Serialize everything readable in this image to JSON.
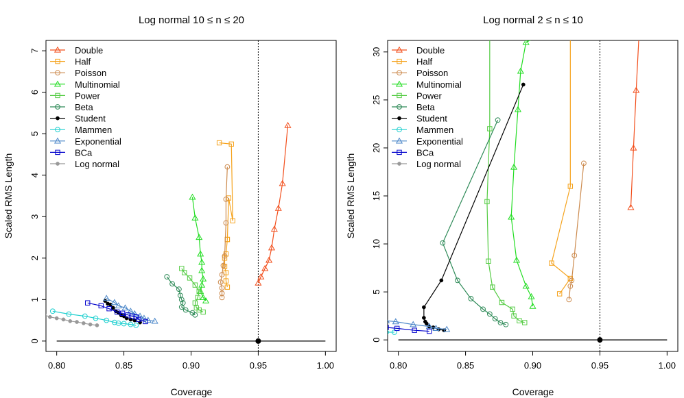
{
  "chart_data": [
    {
      "type": "line",
      "title": "Log normal 10 ≤ n ≤ 20",
      "xlabel": "Coverage",
      "ylabel": "Scaled RMS Length",
      "xlim": [
        0.792,
        1.008
      ],
      "ylim": [
        -0.25,
        7.25
      ],
      "xticks": [
        0.8,
        0.85,
        0.9,
        0.95,
        1.0
      ],
      "xtick_labels": [
        "0.80",
        "0.85",
        "0.90",
        "0.95",
        "1.00"
      ],
      "yticks": [
        0,
        1,
        2,
        3,
        4,
        5,
        6,
        7
      ],
      "ytick_labels": [
        "0",
        "1",
        "2",
        "3",
        "4",
        "5",
        "6",
        "7"
      ],
      "vline": 0.95,
      "baseline": {
        "x": [
          0.8,
          1.0
        ],
        "y": 0,
        "point": [
          0.95,
          0
        ]
      },
      "legend_position": "top-left",
      "series": [
        {
          "name": "Double",
          "color": "#f24d1a",
          "marker": "triangle",
          "x": [
            0.95,
            0.952,
            0.955,
            0.958,
            0.96,
            0.962,
            0.965,
            0.968,
            0.972
          ],
          "y": [
            1.4,
            1.55,
            1.75,
            1.95,
            2.25,
            2.7,
            3.2,
            3.8,
            5.2
          ]
        },
        {
          "name": "Half",
          "color": "#f5a21b",
          "marker": "square",
          "x": [
            0.927,
            0.926,
            0.926,
            0.925,
            0.925,
            0.926,
            0.927,
            0.927,
            0.928,
            0.931,
            0.93,
            0.921
          ],
          "y": [
            1.3,
            1.45,
            1.65,
            1.8,
            2.0,
            2.1,
            2.45,
            2.45,
            3.45,
            2.9,
            4.75,
            4.78
          ]
        },
        {
          "name": "Poisson",
          "color": "#cc8a4d",
          "marker": "circle",
          "x": [
            0.923,
            0.923,
            0.923,
            0.922,
            0.923,
            0.924,
            0.925,
            0.926,
            0.926,
            0.927
          ],
          "y": [
            1.05,
            1.15,
            1.28,
            1.42,
            1.6,
            1.82,
            2.05,
            2.85,
            3.42,
            4.2
          ]
        },
        {
          "name": "Multinomial",
          "color": "#22dd22",
          "marker": "triangle",
          "x": [
            0.911,
            0.909,
            0.907,
            0.908,
            0.909,
            0.908,
            0.908,
            0.907,
            0.906,
            0.903,
            0.901
          ],
          "y": [
            0.97,
            1.05,
            1.2,
            1.35,
            1.5,
            1.7,
            1.9,
            2.1,
            2.5,
            2.97,
            3.47
          ]
        },
        {
          "name": "Power",
          "color": "#55cc44",
          "marker": "square",
          "x": [
            0.909,
            0.906,
            0.904,
            0.903,
            0.905,
            0.906,
            0.903,
            0.899,
            0.895,
            0.893
          ],
          "y": [
            0.7,
            0.75,
            0.8,
            0.92,
            1.05,
            1.2,
            1.35,
            1.52,
            1.65,
            1.75
          ]
        },
        {
          "name": "Beta",
          "color": "#2d8a57",
          "marker": "circle",
          "x": [
            0.903,
            0.901,
            0.896,
            0.893,
            0.894,
            0.893,
            0.892,
            0.891,
            0.886,
            0.882
          ],
          "y": [
            0.63,
            0.68,
            0.75,
            0.82,
            0.92,
            1.0,
            1.1,
            1.25,
            1.38,
            1.55
          ]
        },
        {
          "name": "Student",
          "color": "#000000",
          "marker": "dot",
          "x": [
            0.862,
            0.858,
            0.855,
            0.852,
            0.85,
            0.848,
            0.846,
            0.844,
            0.842,
            0.84,
            0.838,
            0.836
          ],
          "y": [
            0.45,
            0.5,
            0.52,
            0.55,
            0.6,
            0.62,
            0.68,
            0.72,
            0.8,
            0.88,
            0.9,
            0.97
          ]
        },
        {
          "name": "Mammen",
          "color": "#1ccfcf",
          "marker": "circle",
          "x": [
            0.859,
            0.855,
            0.85,
            0.846,
            0.843,
            0.837,
            0.829,
            0.821,
            0.809,
            0.797
          ],
          "y": [
            0.38,
            0.4,
            0.42,
            0.43,
            0.45,
            0.5,
            0.55,
            0.6,
            0.65,
            0.72
          ]
        },
        {
          "name": "Exponential",
          "color": "#4a86c8",
          "marker": "triangle",
          "x": [
            0.873,
            0.868,
            0.865,
            0.862,
            0.858,
            0.855,
            0.851,
            0.846,
            0.843,
            0.837
          ],
          "y": [
            0.48,
            0.5,
            0.55,
            0.6,
            0.66,
            0.72,
            0.8,
            0.85,
            0.93,
            1.03
          ]
        },
        {
          "name": "BCa",
          "color": "#0000cc",
          "marker": "square",
          "x": [
            0.866,
            0.861,
            0.859,
            0.856,
            0.853,
            0.849,
            0.845,
            0.839,
            0.833,
            0.823
          ],
          "y": [
            0.47,
            0.52,
            0.58,
            0.6,
            0.63,
            0.67,
            0.7,
            0.78,
            0.85,
            0.92
          ]
        },
        {
          "name": "Log normal",
          "color": "#999999",
          "marker": "dot",
          "x": [
            0.83,
            0.825,
            0.82,
            0.815,
            0.81,
            0.805,
            0.8,
            0.795,
            0.791
          ],
          "y": [
            0.38,
            0.4,
            0.43,
            0.46,
            0.48,
            0.52,
            0.55,
            0.58,
            0.63
          ]
        }
      ]
    },
    {
      "type": "line",
      "title": "Log normal 2 ≤ n ≤ 10",
      "xlabel": "Coverage",
      "ylabel": "Scaled RMS Length",
      "xlim": [
        0.792,
        1.008
      ],
      "ylim": [
        -1.2,
        31.2
      ],
      "xticks": [
        0.8,
        0.85,
        0.9,
        0.95,
        1.0
      ],
      "xtick_labels": [
        "0.80",
        "0.85",
        "0.90",
        "0.95",
        "1.00"
      ],
      "yticks": [
        0,
        5,
        10,
        15,
        20,
        25,
        30
      ],
      "ytick_labels": [
        "0",
        "5",
        "10",
        "15",
        "20",
        "25",
        "30"
      ],
      "vline": 0.95,
      "baseline": {
        "x": [
          0.8,
          1.0
        ],
        "y": 0,
        "point": [
          0.95,
          0
        ]
      },
      "legend_position": "top-left",
      "series": [
        {
          "name": "Double",
          "color": "#f24d1a",
          "marker": "triangle",
          "x": [
            0.973,
            0.975,
            0.977,
            0.979
          ],
          "y": [
            13.8,
            20.0,
            26.0,
            31.5
          ]
        },
        {
          "name": "Half",
          "color": "#f5a21b",
          "marker": "square",
          "x": [
            0.92,
            0.928,
            0.914,
            0.928,
            0.928
          ],
          "y": [
            4.8,
            6.4,
            8.0,
            16.0,
            31.5
          ]
        },
        {
          "name": "Poisson",
          "color": "#cc8a4d",
          "marker": "circle",
          "x": [
            0.927,
            0.928,
            0.929,
            0.931,
            0.938
          ],
          "y": [
            4.2,
            5.6,
            6.2,
            8.8,
            18.4
          ]
        },
        {
          "name": "Multinomial",
          "color": "#22dd22",
          "marker": "triangle",
          "x": [
            0.9,
            0.899,
            0.895,
            0.888,
            0.884,
            0.886,
            0.889,
            0.891,
            0.895,
            0.902
          ],
          "y": [
            3.5,
            4.5,
            5.6,
            8.3,
            12.8,
            18.0,
            24.0,
            28.0,
            31.0,
            31.5
          ]
        },
        {
          "name": "Power",
          "color": "#55cc44",
          "marker": "square",
          "x": [
            0.894,
            0.89,
            0.886,
            0.885,
            0.877,
            0.87,
            0.867,
            0.866,
            0.868,
            0.868
          ],
          "y": [
            1.8,
            2.0,
            2.5,
            3.2,
            3.9,
            5.5,
            8.2,
            14.4,
            22.0,
            31.5
          ]
        },
        {
          "name": "Beta",
          "color": "#2d8a57",
          "marker": "circle",
          "x": [
            0.88,
            0.876,
            0.872,
            0.868,
            0.863,
            0.854,
            0.844,
            0.833,
            0.874
          ],
          "y": [
            1.6,
            1.8,
            2.2,
            2.7,
            3.2,
            4.3,
            6.2,
            10.1,
            22.9
          ]
        },
        {
          "name": "Student",
          "color": "#000000",
          "marker": "dot",
          "x": [
            0.834,
            0.83,
            0.826,
            0.823,
            0.821,
            0.82,
            0.819,
            0.819,
            0.832,
            0.893
          ],
          "y": [
            1.0,
            1.1,
            1.3,
            1.4,
            1.7,
            1.9,
            2.3,
            3.4,
            6.2,
            26.6
          ]
        },
        {
          "name": "Mammen",
          "color": "#1ccfcf",
          "marker": "circle",
          "x": [
            0.797,
            0.791
          ],
          "y": [
            0.8,
            0.8
          ]
        },
        {
          "name": "Exponential",
          "color": "#4a86c8",
          "marker": "triangle",
          "x": [
            0.836,
            0.828,
            0.823,
            0.811,
            0.798,
            0.791
          ],
          "y": [
            1.1,
            1.2,
            1.4,
            1.6,
            1.9,
            2.0
          ]
        },
        {
          "name": "BCa",
          "color": "#0000cc",
          "marker": "square",
          "x": [
            0.823,
            0.812,
            0.799,
            0.791
          ],
          "y": [
            0.9,
            1.0,
            1.2,
            1.3
          ]
        },
        {
          "name": "Log normal",
          "color": "#999999",
          "marker": "dot",
          "x": [],
          "y": []
        }
      ]
    }
  ]
}
